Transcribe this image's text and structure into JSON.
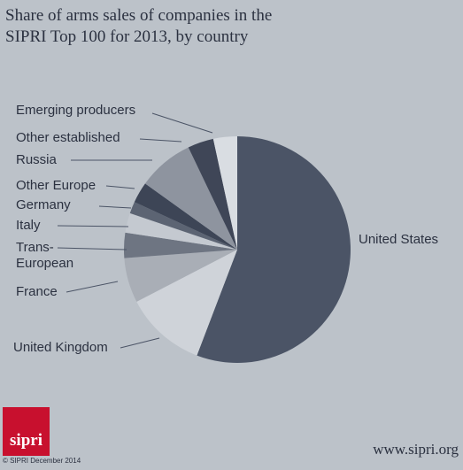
{
  "chart_data": {
    "type": "pie",
    "title": "Share of arms sales of companies in the SIPRI Top 100 for 2013, by country",
    "categories": [
      "United States",
      "United Kingdom",
      "France",
      "Trans-European",
      "Italy",
      "Germany",
      "Other Europe",
      "Russia",
      "Other established",
      "Emerging producers"
    ],
    "values": [
      55.8,
      11.6,
      6.4,
      3.6,
      2.8,
      1.7,
      3.0,
      8.0,
      3.7,
      3.4
    ],
    "colors": [
      "#4b5466",
      "#cfd3d9",
      "#a9aeb6",
      "#6e7582",
      "#c4c9d0",
      "#5c6473",
      "#3d4556",
      "#8e949f",
      "#3f4657",
      "#d9dde2"
    ],
    "logo": "sipri",
    "credit": "© SIPRI December 2014",
    "website": "www.sipri.org"
  }
}
